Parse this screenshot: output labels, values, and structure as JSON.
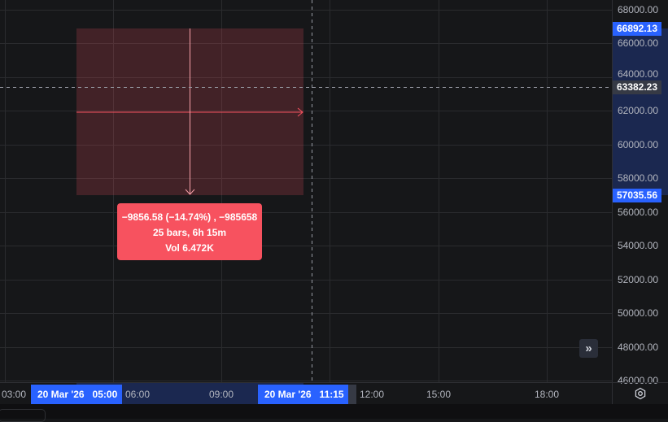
{
  "price_axis": {
    "labels": [
      "68000.00",
      "66000.00",
      "64000.00",
      "62000.00",
      "60000.00",
      "58000.00",
      "56000.00",
      "54000.00",
      "52000.00",
      "50000.00",
      "48000.00",
      "46000.00"
    ],
    "top_badge": "66892.13",
    "crosshair_badge": "63382.23",
    "bottom_badge": "57035.56"
  },
  "time_axis": {
    "labels": [
      "03:00",
      "06:00",
      "09:00",
      "12:00",
      "15:00",
      "18:00"
    ],
    "start_badge": "20 Mar '26   05:00",
    "end_badge": "20 Mar '26   11:15"
  },
  "measure_tooltip": {
    "line1": "−9856.58 (−14.74%) , −985658",
    "line2": "25 bars, 6h 15m",
    "line3": "Vol 6.472K"
  },
  "colors": {
    "measure_negative": "#f7525f",
    "badge": "#2962ff",
    "background": "#161719"
  },
  "icons": {
    "scroll": "double-chevron-right-icon",
    "settings": "gear-icon"
  }
}
